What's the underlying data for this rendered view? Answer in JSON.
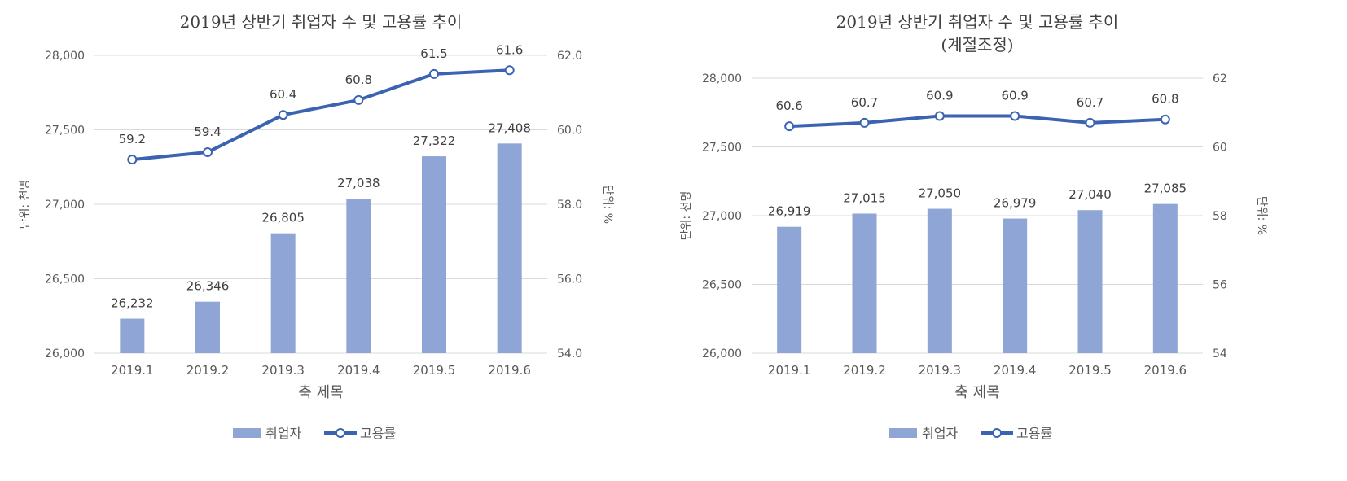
{
  "colors": {
    "bar": "#8EA5D6",
    "line": "#3A63B1",
    "grid": "#d9d9d9",
    "text": "#595959"
  },
  "chart_data": [
    {
      "type": "bar",
      "title": "2019년 상반기 취업자 수 및 고용률 추이",
      "subtitle": "",
      "xlabel": "축 제목",
      "ylabel": "단위: 천명",
      "y2label": "단위: %",
      "categories": [
        "2019.1",
        "2019.2",
        "2019.3",
        "2019.4",
        "2019.5",
        "2019.6"
      ],
      "ylim": [
        26000,
        28000
      ],
      "yticks": [
        "26,000",
        "26,500",
        "27,000",
        "27,500",
        "28,000"
      ],
      "y2lim": [
        54.0,
        62.0
      ],
      "y2ticks": [
        "54.0",
        "56.0",
        "58.0",
        "60.0",
        "62.0"
      ],
      "series": [
        {
          "name": "취업자",
          "type": "bar",
          "axis": "left",
          "values": [
            26232,
            26346,
            26805,
            27038,
            27322,
            27408
          ],
          "labels": [
            "26,232",
            "26,346",
            "26,805",
            "27,038",
            "27,322",
            "27,408"
          ]
        },
        {
          "name": "고용률",
          "type": "line",
          "axis": "right",
          "values": [
            59.2,
            59.4,
            60.4,
            60.8,
            61.5,
            61.6
          ],
          "labels": [
            "59.2",
            "59.4",
            "60.4",
            "60.8",
            "61.5",
            "61.6"
          ]
        }
      ],
      "grid": true,
      "legend": "bottom"
    },
    {
      "type": "bar",
      "title": "2019년 상반기 취업자 수 및 고용률 추이",
      "subtitle": "(계절조정)",
      "xlabel": "축 제목",
      "ylabel": "단위: 천명",
      "y2label": "단위: %",
      "categories": [
        "2019.1",
        "2019.2",
        "2019.3",
        "2019.4",
        "2019.5",
        "2019.6"
      ],
      "ylim": [
        26000,
        28000
      ],
      "yticks": [
        "26,000",
        "26,500",
        "27,000",
        "27,500",
        "28,000"
      ],
      "y2lim": [
        54,
        62
      ],
      "y2ticks": [
        "54",
        "56",
        "58",
        "60",
        "62"
      ],
      "series": [
        {
          "name": "취업자",
          "type": "bar",
          "axis": "left",
          "values": [
            26919,
            27015,
            27050,
            26979,
            27040,
            27085
          ],
          "labels": [
            "26,919",
            "27,015",
            "27,050",
            "26,979",
            "27,040",
            "27,085"
          ]
        },
        {
          "name": "고용률",
          "type": "line",
          "axis": "right",
          "values": [
            60.6,
            60.7,
            60.9,
            60.9,
            60.7,
            60.8
          ],
          "labels": [
            "60.6",
            "60.7",
            "60.9",
            "60.9",
            "60.7",
            "60.8"
          ]
        }
      ],
      "grid": true,
      "legend": "bottom"
    }
  ]
}
